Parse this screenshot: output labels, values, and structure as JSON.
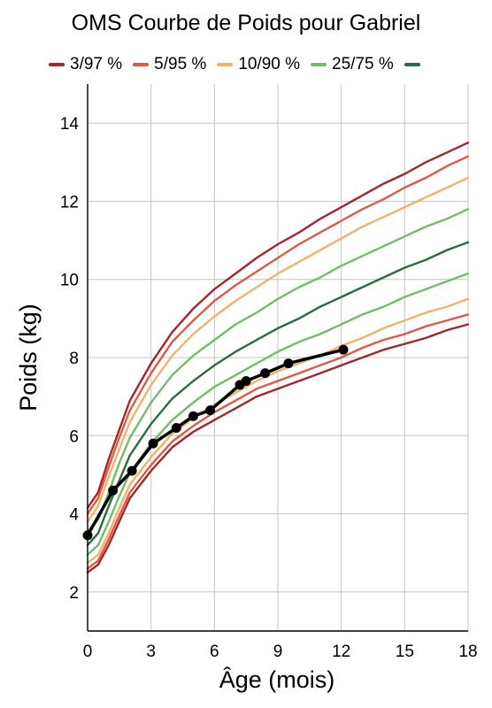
{
  "chart_data": {
    "type": "line",
    "title": "OMS Courbe de Poids pour Gabriel",
    "xlabel": "Âge (mois)",
    "ylabel": "Poids (kg)",
    "xlim": [
      0,
      18
    ],
    "ylim": [
      1,
      15
    ],
    "xticks": [
      0,
      3,
      6,
      9,
      12,
      15,
      18
    ],
    "yticks": [
      2,
      4,
      6,
      8,
      10,
      12,
      14
    ],
    "grid": true,
    "legend_position": "top",
    "legend": [
      {
        "label": "3/97 %",
        "color": "#a3262e"
      },
      {
        "label": "5/95 %",
        "color": "#dd5a43"
      },
      {
        "label": "10/90 %",
        "color": "#f2b26a"
      },
      {
        "label": "25/75 %",
        "color": "#73bd6a"
      },
      {
        "label": "",
        "color": "#2e6b3d"
      }
    ],
    "x": [
      0,
      0.5,
      1,
      1.5,
      2,
      3,
      4,
      5,
      6,
      7,
      8,
      9,
      10,
      11,
      12,
      13,
      14,
      15,
      16,
      17,
      18
    ],
    "series": [
      {
        "color": "#a3262e",
        "values": [
          2.5,
          2.7,
          3.2,
          3.8,
          4.4,
          5.1,
          5.7,
          6.1,
          6.4,
          6.7,
          7.0,
          7.2,
          7.4,
          7.6,
          7.8,
          8.0,
          8.2,
          8.35,
          8.5,
          8.7,
          8.85
        ]
      },
      {
        "color": "#dd5a43",
        "values": [
          2.6,
          2.8,
          3.35,
          3.95,
          4.55,
          5.25,
          5.85,
          6.25,
          6.6,
          6.9,
          7.2,
          7.4,
          7.6,
          7.8,
          8.0,
          8.25,
          8.45,
          8.6,
          8.8,
          8.95,
          9.1
        ]
      },
      {
        "color": "#f2b26a",
        "values": [
          2.75,
          2.95,
          3.5,
          4.15,
          4.75,
          5.45,
          6.05,
          6.45,
          6.8,
          7.1,
          7.4,
          7.65,
          7.85,
          8.05,
          8.3,
          8.5,
          8.75,
          8.95,
          9.15,
          9.3,
          9.5
        ]
      },
      {
        "color": "#73bd6a",
        "values": [
          2.95,
          3.2,
          3.8,
          4.45,
          5.05,
          5.8,
          6.4,
          6.85,
          7.25,
          7.55,
          7.85,
          8.15,
          8.4,
          8.6,
          8.85,
          9.1,
          9.3,
          9.55,
          9.75,
          9.95,
          10.15
        ]
      },
      {
        "color": "#2e6b3d",
        "values": [
          3.2,
          3.5,
          4.2,
          4.85,
          5.5,
          6.3,
          6.95,
          7.4,
          7.8,
          8.15,
          8.45,
          8.75,
          9.0,
          9.3,
          9.55,
          9.8,
          10.05,
          10.3,
          10.5,
          10.75,
          10.95
        ]
      },
      {
        "color": "#73bd6a",
        "values": [
          3.55,
          3.85,
          4.55,
          5.3,
          5.95,
          6.85,
          7.55,
          8.05,
          8.45,
          8.85,
          9.15,
          9.5,
          9.8,
          10.05,
          10.35,
          10.6,
          10.85,
          11.1,
          11.35,
          11.55,
          11.8
        ]
      },
      {
        "color": "#f2b26a",
        "values": [
          3.8,
          4.2,
          4.95,
          5.65,
          6.35,
          7.3,
          8.05,
          8.6,
          9.05,
          9.45,
          9.8,
          10.15,
          10.45,
          10.75,
          11.05,
          11.35,
          11.6,
          11.85,
          12.1,
          12.35,
          12.6
        ]
      },
      {
        "color": "#dd5a43",
        "values": [
          4.0,
          4.4,
          5.2,
          5.95,
          6.65,
          7.6,
          8.4,
          8.95,
          9.45,
          9.85,
          10.2,
          10.55,
          10.9,
          11.2,
          11.5,
          11.8,
          12.05,
          12.35,
          12.6,
          12.9,
          13.15
        ]
      },
      {
        "color": "#a3262e",
        "values": [
          4.15,
          4.55,
          5.4,
          6.15,
          6.9,
          7.85,
          8.65,
          9.25,
          9.75,
          10.15,
          10.55,
          10.9,
          11.2,
          11.55,
          11.85,
          12.15,
          12.45,
          12.7,
          13.0,
          13.25,
          13.5
        ]
      }
    ],
    "measurements": {
      "name": "Gabriel",
      "color": "#000000",
      "x": [
        0,
        1.2,
        2.1,
        3.1,
        4.2,
        5.0,
        5.8,
        7.2,
        7.5,
        8.4,
        9.5,
        12.1
      ],
      "y": [
        3.45,
        4.6,
        5.1,
        5.8,
        6.2,
        6.5,
        6.65,
        7.3,
        7.4,
        7.6,
        7.85,
        8.2
      ]
    }
  }
}
